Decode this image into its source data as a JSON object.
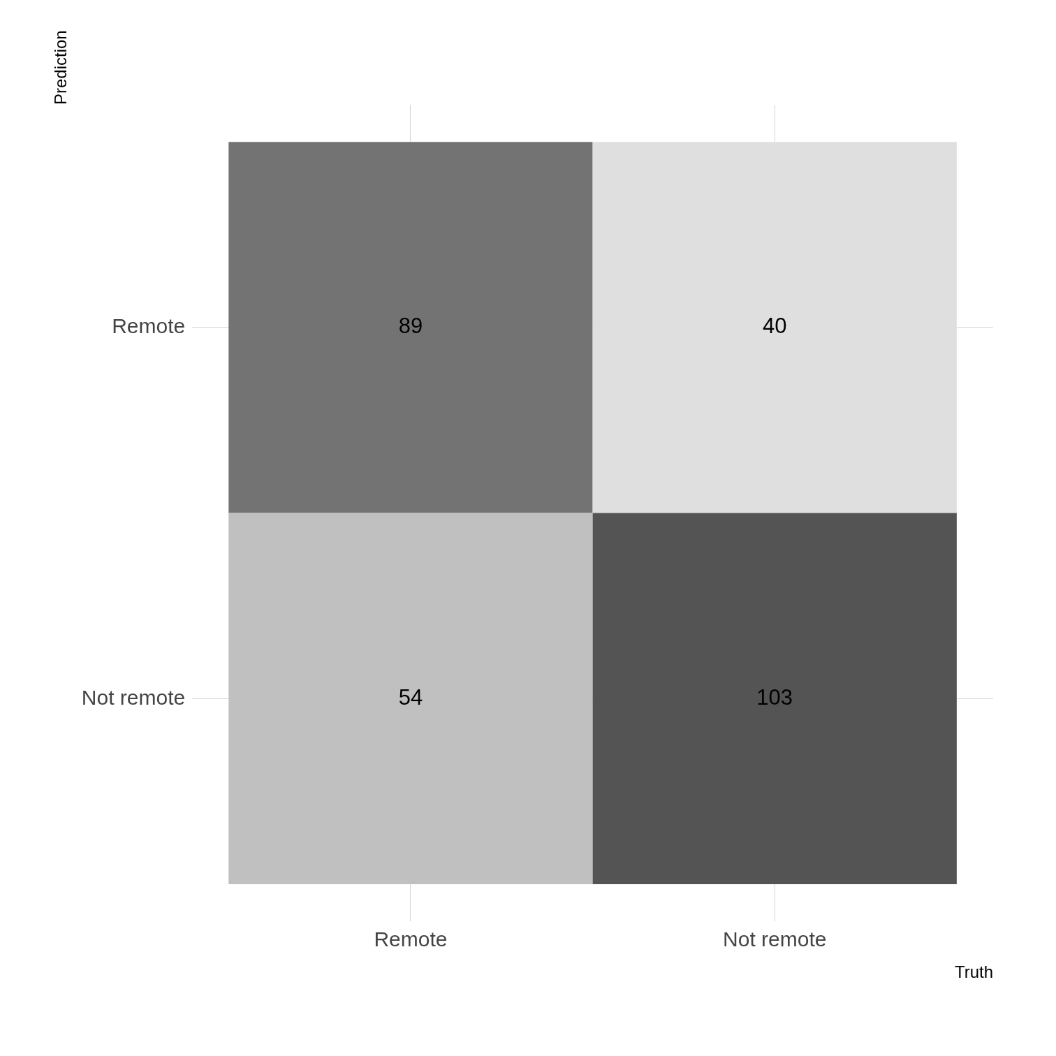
{
  "chart_data": {
    "type": "heatmap",
    "xlabel": "Truth",
    "ylabel": "Prediction",
    "categories": [
      "Remote",
      "Not remote"
    ],
    "y_categories": [
      "Remote",
      "Not remote"
    ],
    "cells": [
      [
        89,
        40
      ],
      [
        54,
        103
      ]
    ],
    "data_labels": true,
    "grid": true
  }
}
